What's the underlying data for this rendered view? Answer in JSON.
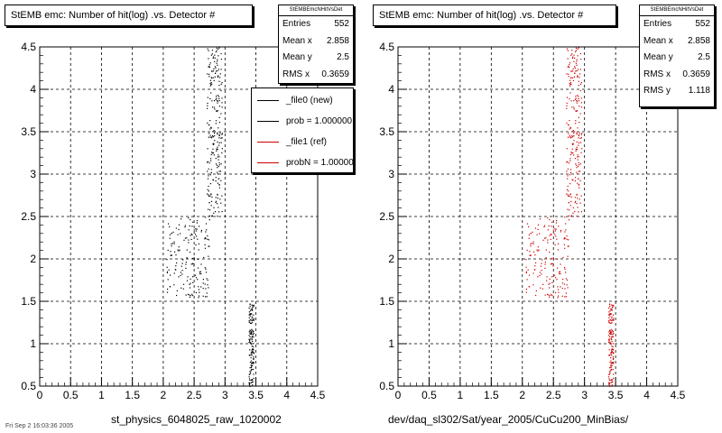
{
  "panels": [
    {
      "title": "StEMB emc: Number of hit(log) .vs. Detector #",
      "stats": {
        "name": "StEMBEmcNHitVsDet",
        "rows": [
          {
            "label": "Entries",
            "value": "552"
          },
          {
            "label": "Mean x",
            "value": "2.858"
          },
          {
            "label": "Mean y",
            "value": "2.5"
          },
          {
            "label": "RMS x",
            "value": "0.3659"
          }
        ]
      },
      "xlabel": "st_physics_6048025_raw_1020002",
      "legend": {
        "entries": [
          {
            "label": "_file0 (new)",
            "color": "#000000"
          },
          {
            "label": "prob = 1.000000",
            "color": "#000000"
          },
          {
            "label": "_file1 (ref)",
            "color": "#cc0000"
          },
          {
            "label": "probN = 1.000000",
            "color": "#cc0000"
          }
        ]
      }
    },
    {
      "title": "StEMB emc: Number of hit(log) .vs. Detector #",
      "stats": {
        "name": "StEMBEmcNHitVsDet",
        "rows": [
          {
            "label": "Entries",
            "value": "552"
          },
          {
            "label": "Mean x",
            "value": "2.858"
          },
          {
            "label": "Mean y",
            "value": "2.5"
          },
          {
            "label": "RMS x",
            "value": "0.3659"
          },
          {
            "label": "RMS y",
            "value": "1.118"
          }
        ]
      },
      "xlabel": "dev/daq_sl302/Sat/year_2005/CuCu200_MinBias/"
    }
  ],
  "footer": "Fri Sep 2 16:03:36 2005",
  "chart_data": [
    {
      "type": "scatter",
      "title": "StEMB emc: Number of hit(log) .vs. Detector #",
      "xlabel": "st_physics_6048025_raw_1020002",
      "ylabel": "",
      "xlim": [
        0,
        4.5
      ],
      "ylim": [
        0.5,
        4.5
      ],
      "xticks": [
        "0",
        "0.5",
        "1",
        "1.5",
        "2",
        "2.5",
        "3",
        "3.5",
        "4",
        "4.5"
      ],
      "yticks": [
        "0.5",
        "1",
        "1.5",
        "2",
        "2.5",
        "3",
        "3.5",
        "4",
        "4.5"
      ],
      "grid": true,
      "legend_position": "top-right",
      "marker_color": "#000000",
      "clusters": [
        {
          "x_range": [
            2.7,
            2.95
          ],
          "y_range": [
            2.5,
            4.5
          ],
          "n": 230
        },
        {
          "x_range": [
            2.05,
            2.75
          ],
          "y_range": [
            1.55,
            2.5
          ],
          "n": 170
        },
        {
          "x_range": [
            3.38,
            3.46
          ],
          "y_range": [
            0.5,
            1.5
          ],
          "n": 140
        }
      ]
    },
    {
      "type": "scatter",
      "title": "StEMB emc: Number of hit(log) .vs. Detector #",
      "xlabel": "dev/daq_sl302/Sat/year_2005/CuCu200_MinBias/",
      "ylabel": "",
      "xlim": [
        0,
        4.5
      ],
      "ylim": [
        0.5,
        4.5
      ],
      "xticks": [
        "0",
        "0.5",
        "1",
        "1.5",
        "2",
        "2.5",
        "3",
        "3.5",
        "4",
        "4.5"
      ],
      "yticks": [
        "0.5",
        "1",
        "1.5",
        "2",
        "2.5",
        "3",
        "3.5",
        "4",
        "4.5"
      ],
      "grid": true,
      "marker_color": "#cc0000",
      "clusters": [
        {
          "x_range": [
            2.7,
            2.95
          ],
          "y_range": [
            2.5,
            4.5
          ],
          "n": 230
        },
        {
          "x_range": [
            2.05,
            2.75
          ],
          "y_range": [
            1.55,
            2.5
          ],
          "n": 170
        },
        {
          "x_range": [
            3.38,
            3.46
          ],
          "y_range": [
            0.5,
            1.5
          ],
          "n": 140
        }
      ]
    }
  ]
}
